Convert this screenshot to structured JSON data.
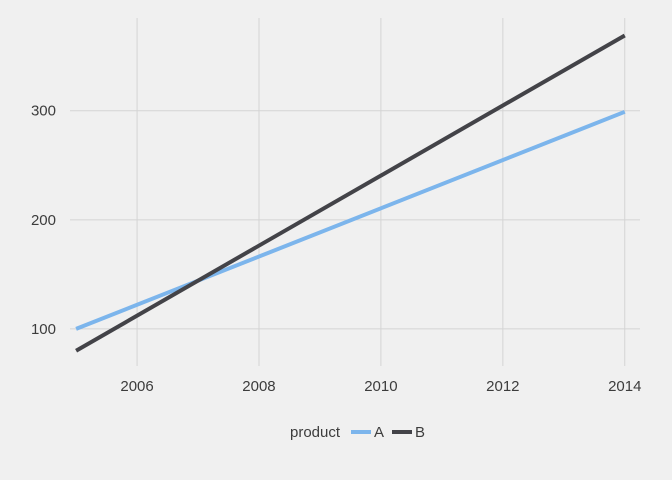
{
  "chart_data": {
    "type": "line",
    "title": "",
    "xlabel": "",
    "ylabel": "",
    "xlim": [
      2004.9,
      2014.25
    ],
    "ylim": [
      66,
      385
    ],
    "x_ticks": [
      2006,
      2008,
      2010,
      2012,
      2014
    ],
    "y_ticks": [
      100,
      200,
      300
    ],
    "grid": true,
    "legend": {
      "title": "product",
      "position": "bottom"
    },
    "series": [
      {
        "name": "A",
        "color": "#7cb5ec",
        "x": [
          2005,
          2014
        ],
        "values": [
          100,
          299
        ]
      },
      {
        "name": "B",
        "color": "#434348",
        "x": [
          2005,
          2014
        ],
        "values": [
          80,
          369
        ]
      }
    ]
  }
}
